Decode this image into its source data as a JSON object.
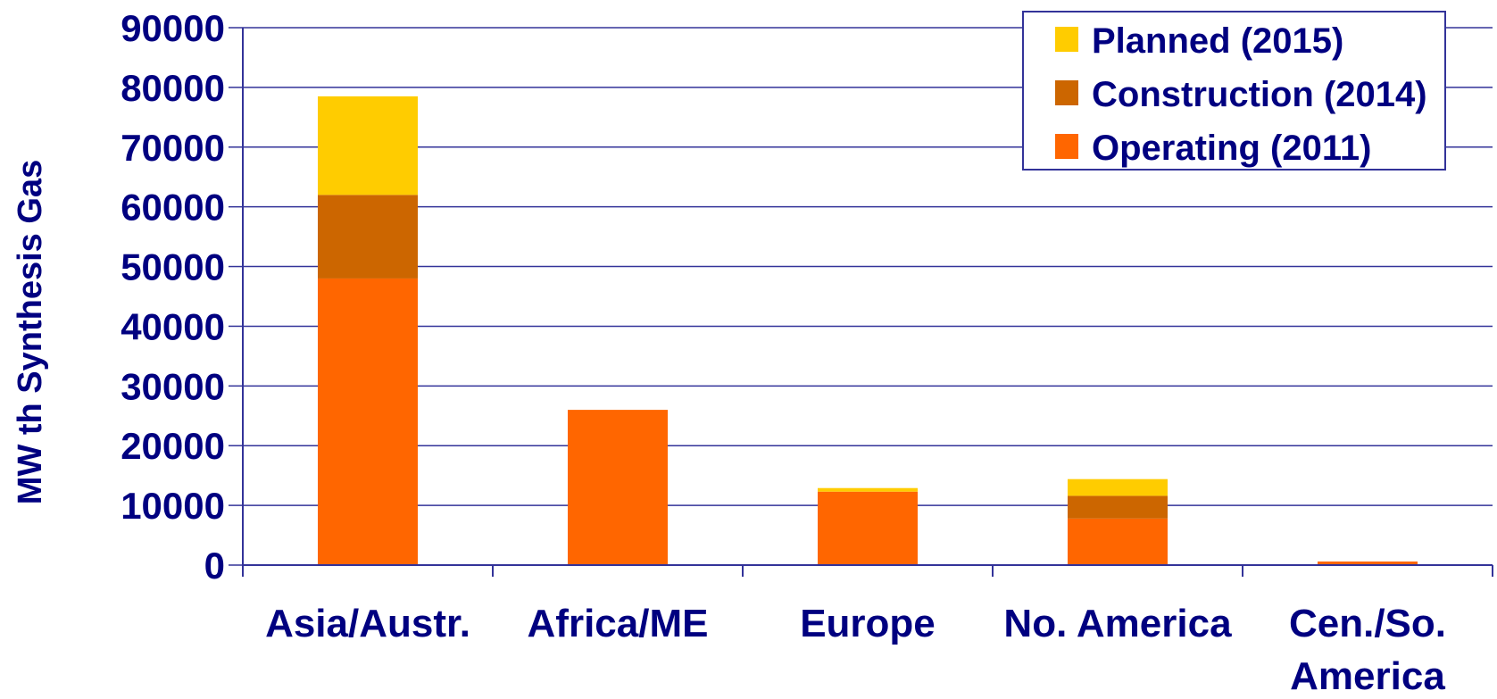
{
  "chart_data": {
    "type": "bar",
    "stacked": true,
    "title": "",
    "xlabel": "",
    "ylabel": "MW th Synthesis Gas",
    "ylim": [
      0,
      90000
    ],
    "yticks": [
      0,
      10000,
      20000,
      30000,
      40000,
      50000,
      60000,
      70000,
      80000,
      90000
    ],
    "grid": true,
    "legend_position": "top-right",
    "categories": [
      "Asia/Austr.",
      "Africa/ME",
      "Europe",
      "No. America",
      "Cen./So. America"
    ],
    "series": [
      {
        "name": "Operating (2011)",
        "color": "#FF6600",
        "values": [
          48000,
          26000,
          12300,
          7800,
          600
        ]
      },
      {
        "name": "Construction (2014)",
        "color": "#CC6600",
        "values": [
          14000,
          0,
          0,
          3800,
          0
        ]
      },
      {
        "name": "Planned (2015)",
        "color": "#FFCC00",
        "values": [
          16500,
          0,
          600,
          2800,
          0
        ]
      }
    ],
    "legend_order": [
      "Planned (2015)",
      "Construction (2014)",
      "Operating (2011)"
    ],
    "text_color": "#000080",
    "axis_color": "#333399"
  }
}
